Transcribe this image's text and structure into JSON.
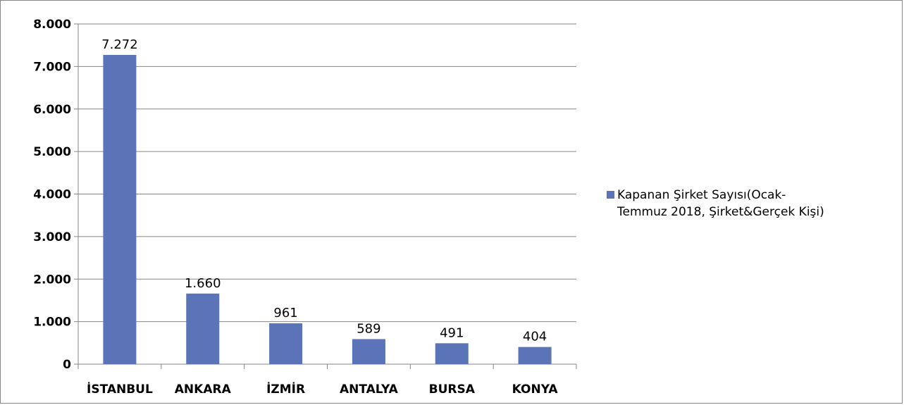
{
  "chart_data": {
    "type": "bar",
    "categories": [
      "İSTANBUL",
      "ANKARA",
      "İZMİR",
      "ANTALYA",
      "BURSA",
      "KONYA"
    ],
    "series": [
      {
        "name": "Kapanan Şirket Sayısı(Ocak-Temmuz 2018, Şirket&Gerçek Kişi)",
        "values": [
          7272,
          1660,
          961,
          589,
          491,
          404
        ],
        "labels": [
          "7.272",
          "1.660",
          "961",
          "589",
          "491",
          "404"
        ],
        "color": "#5b74b8"
      }
    ],
    "yticks": [
      "0",
      "1.000",
      "2.000",
      "3.000",
      "4.000",
      "5.000",
      "6.000",
      "7.000",
      "8.000"
    ],
    "ylim": [
      0,
      8000
    ],
    "grid": true,
    "legend_position": "right"
  },
  "legend": {
    "line1": "Kapanan Şirket Sayısı(Ocak-",
    "line2": "Temmuz 2018, Şirket&Gerçek Kişi)"
  }
}
